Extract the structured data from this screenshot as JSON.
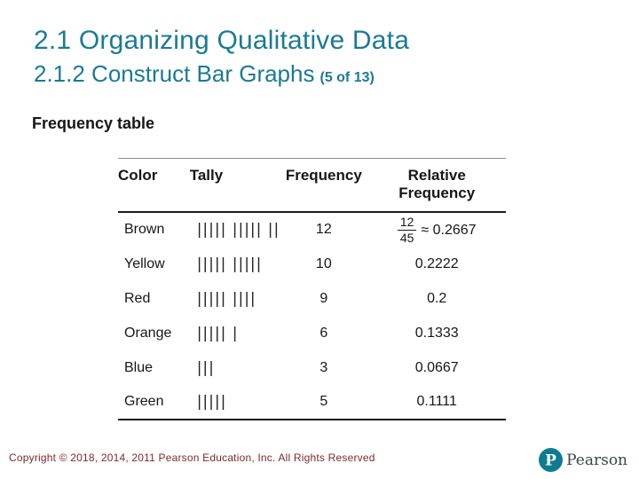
{
  "slide": {
    "title": "2.1 Organizing Qualitative Data",
    "subtitle": "2.1.2 Construct Bar Graphs",
    "subtitle_suffix": "(5 of 13)",
    "section_label": "Frequency table"
  },
  "table": {
    "headers": [
      "Color",
      "Tally",
      "Frequency",
      "Relative Frequency"
    ],
    "rows": [
      {
        "color": "Brown",
        "tally": "||||| ||||| ||",
        "frequency": "12",
        "relative_fraction": {
          "numerator": "12",
          "denominator": "45",
          "approx": "≈ 0.2667"
        }
      },
      {
        "color": "Yellow",
        "tally": "||||| |||||",
        "frequency": "10",
        "relative": "0.2222"
      },
      {
        "color": "Red",
        "tally": "||||| ||||",
        "frequency": "9",
        "relative": "0.2"
      },
      {
        "color": "Orange",
        "tally": "||||| |",
        "frequency": "6",
        "relative": "0.1333"
      },
      {
        "color": "Blue",
        "tally": "|||",
        "frequency": "3",
        "relative": "0.0667"
      },
      {
        "color": "Green",
        "tally": "|||||",
        "frequency": "5",
        "relative": "0.1111"
      }
    ]
  },
  "chart_data": {
    "type": "table",
    "title": "Frequency table",
    "columns": [
      "Color",
      "Tally",
      "Frequency",
      "Relative Frequency"
    ],
    "categories": [
      "Brown",
      "Yellow",
      "Red",
      "Orange",
      "Blue",
      "Green"
    ],
    "frequencies": [
      12,
      10,
      9,
      6,
      3,
      5
    ],
    "relative_frequencies": [
      0.2667,
      0.2222,
      0.2,
      0.1333,
      0.0667,
      0.1111
    ],
    "total": 45
  },
  "footer": {
    "copyright": "Copyright © 2018, 2014, 2011 Pearson Education, Inc. All Rights Reserved",
    "logo": {
      "mark": "P",
      "wordmark": "Pearson"
    }
  },
  "colors": {
    "title_teal": "#1C7A93",
    "text_black": "#161616",
    "copyright_red": "#7E2A2A",
    "pearson_circle": "#0D7C92",
    "pearson_wordmark": "#3D4743"
  }
}
